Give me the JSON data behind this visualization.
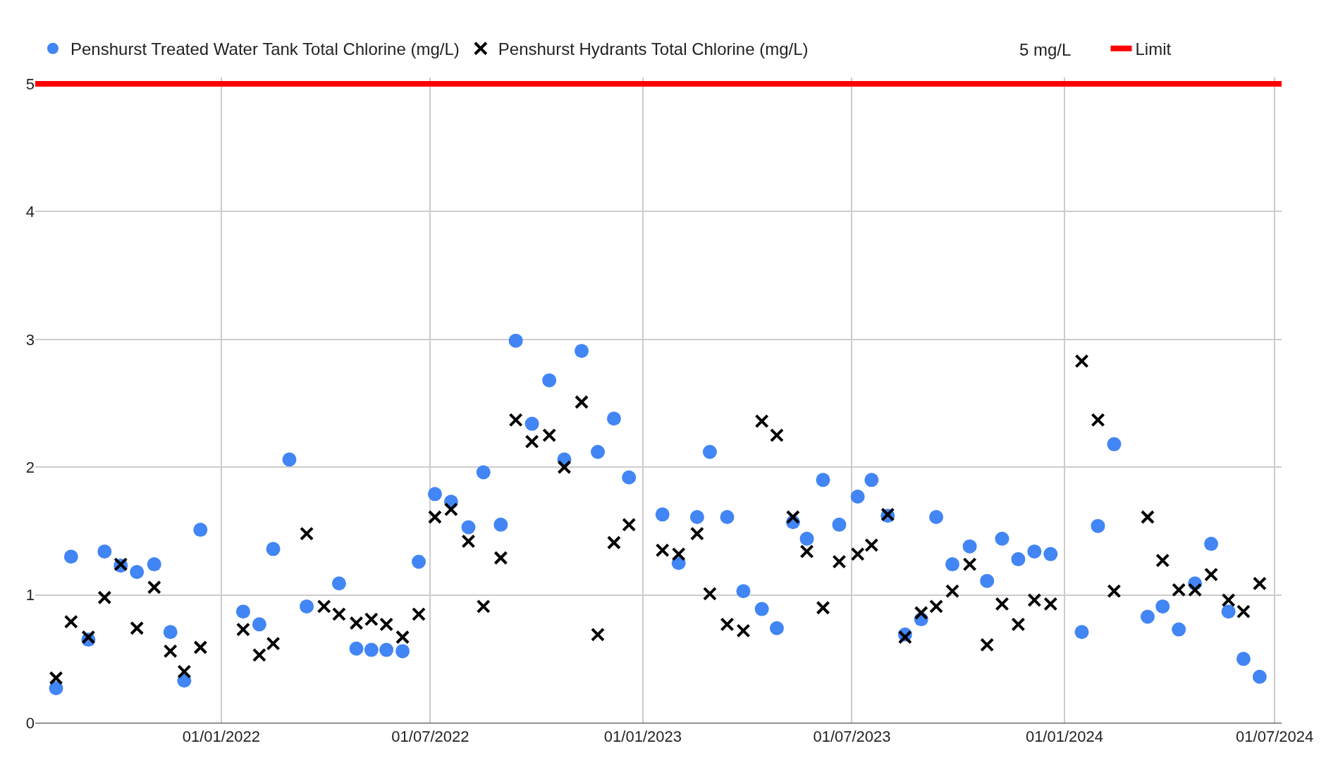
{
  "chart_data": {
    "type": "scatter",
    "xlim": [
      "2021-07-24",
      "2024-07-07"
    ],
    "xticks": [
      {
        "value": "2022-01-01",
        "label": "01/01/2022"
      },
      {
        "value": "2022-07-01",
        "label": "01/07/2022"
      },
      {
        "value": "2023-01-01",
        "label": "01/01/2023"
      },
      {
        "value": "2023-07-01",
        "label": "01/07/2023"
      },
      {
        "value": "2024-01-01",
        "label": "01/01/2024"
      },
      {
        "value": "2024-07-01",
        "label": "01/07/2024"
      }
    ],
    "ylim": [
      0,
      5.05
    ],
    "yticks": [
      0,
      1,
      2,
      3,
      4,
      5
    ],
    "grid": true,
    "legend": "top",
    "annotations": [
      "5 mg/L"
    ],
    "series": [
      {
        "name": "Penshurst Treated Water Tank Total Chlorine (mg/L)",
        "color": "#4285f4",
        "marker": "circle",
        "x": [
          "2021-08-11",
          "2021-08-24",
          "2021-09-08",
          "2021-09-22",
          "2021-10-06",
          "2021-10-20",
          "2021-11-04",
          "2021-11-18",
          "2021-11-30",
          "2021-12-14",
          "2022-01-20",
          "2022-02-03",
          "2022-02-15",
          "2022-03-01",
          "2022-03-16",
          "2022-04-13",
          "2022-04-28",
          "2022-05-11",
          "2022-05-24",
          "2022-06-07",
          "2022-06-21",
          "2022-07-05",
          "2022-07-19",
          "2022-08-03",
          "2022-08-16",
          "2022-08-31",
          "2022-09-13",
          "2022-09-27",
          "2022-10-12",
          "2022-10-25",
          "2022-11-09",
          "2022-11-23",
          "2022-12-07",
          "2022-12-20",
          "2023-01-18",
          "2023-02-01",
          "2023-02-17",
          "2023-02-28",
          "2023-03-15",
          "2023-03-29",
          "2023-04-14",
          "2023-04-27",
          "2023-05-11",
          "2023-05-23",
          "2023-06-06",
          "2023-06-20",
          "2023-07-06",
          "2023-07-18",
          "2023-08-01",
          "2023-08-16",
          "2023-08-30",
          "2023-09-12",
          "2023-09-26",
          "2023-10-11",
          "2023-10-26",
          "2023-11-08",
          "2023-11-22",
          "2023-12-06",
          "2023-12-20",
          "2024-01-16",
          "2024-01-30",
          "2024-02-13",
          "2024-03-13",
          "2024-03-26",
          "2024-04-09",
          "2024-04-23",
          "2024-05-07",
          "2024-05-22",
          "2024-06-04",
          "2024-06-18"
        ],
        "values": [
          0.27,
          1.3,
          0.65,
          1.34,
          1.23,
          1.18,
          1.24,
          0.71,
          0.33,
          1.51,
          0.87,
          0.77,
          1.36,
          2.06,
          0.91,
          1.09,
          0.58,
          0.57,
          0.57,
          0.56,
          1.26,
          1.79,
          1.73,
          1.53,
          1.96,
          1.55,
          2.99,
          2.34,
          2.68,
          2.06,
          2.91,
          2.12,
          2.38,
          1.92,
          1.63,
          1.25,
          1.61,
          2.12,
          1.61,
          1.03,
          0.89,
          0.74,
          1.57,
          1.44,
          1.9,
          1.55,
          1.77,
          1.9,
          1.62,
          0.69,
          0.81,
          1.61,
          1.24,
          1.38,
          1.11,
          1.44,
          1.28,
          1.34,
          1.32,
          0.71,
          1.54,
          2.18,
          0.83,
          0.91,
          0.73,
          1.09,
          1.4,
          0.87,
          0.5,
          0.36
        ]
      },
      {
        "name": "Penshurst Hydrants Total Chlorine (mg/L)",
        "color": "#000000",
        "marker": "cross",
        "x": [
          "2021-08-11",
          "2021-08-24",
          "2021-09-08",
          "2021-09-22",
          "2021-10-06",
          "2021-10-20",
          "2021-11-04",
          "2021-11-18",
          "2021-11-30",
          "2021-12-14",
          "2022-01-20",
          "2022-02-03",
          "2022-02-15",
          "2022-03-16",
          "2022-03-31",
          "2022-04-13",
          "2022-04-28",
          "2022-05-11",
          "2022-05-24",
          "2022-06-07",
          "2022-06-21",
          "2022-07-05",
          "2022-07-19",
          "2022-08-03",
          "2022-08-16",
          "2022-08-31",
          "2022-09-13",
          "2022-09-27",
          "2022-10-12",
          "2022-10-25",
          "2022-11-09",
          "2022-11-23",
          "2022-12-07",
          "2022-12-20",
          "2023-01-18",
          "2023-02-01",
          "2023-02-17",
          "2023-02-28",
          "2023-03-15",
          "2023-03-29",
          "2023-04-14",
          "2023-04-27",
          "2023-05-11",
          "2023-05-23",
          "2023-06-06",
          "2023-06-20",
          "2023-07-06",
          "2023-07-18",
          "2023-08-01",
          "2023-08-16",
          "2023-08-30",
          "2023-09-12",
          "2023-09-26",
          "2023-10-11",
          "2023-10-26",
          "2023-11-08",
          "2023-11-22",
          "2023-12-06",
          "2023-12-20",
          "2024-01-16",
          "2024-01-30",
          "2024-02-13",
          "2024-03-13",
          "2024-03-26",
          "2024-04-09",
          "2024-04-23",
          "2024-05-07",
          "2024-05-22",
          "2024-06-04",
          "2024-06-18"
        ],
        "values": [
          0.35,
          0.79,
          0.67,
          0.98,
          1.24,
          0.74,
          1.06,
          0.56,
          0.4,
          0.59,
          0.73,
          0.53,
          0.62,
          1.48,
          0.91,
          0.85,
          0.78,
          0.81,
          0.77,
          0.67,
          0.85,
          1.61,
          1.67,
          1.42,
          0.91,
          1.29,
          2.37,
          2.2,
          2.25,
          2.0,
          2.51,
          0.69,
          1.41,
          1.55,
          1.35,
          1.32,
          1.48,
          1.01,
          0.77,
          0.72,
          2.36,
          2.25,
          1.61,
          1.34,
          0.9,
          1.26,
          1.32,
          1.39,
          1.63,
          0.67,
          0.86,
          0.91,
          1.03,
          1.24,
          0.61,
          0.93,
          0.77,
          0.96,
          0.93,
          2.83,
          2.37,
          1.03,
          1.61,
          1.27,
          1.04,
          1.04,
          1.16,
          0.96,
          0.87,
          1.09
        ]
      },
      {
        "name": "Limit",
        "type": "line",
        "color": "#ff0000",
        "marker": "none",
        "x": [
          "2021-07-24",
          "2024-07-07"
        ],
        "values": [
          5,
          5
        ]
      }
    ]
  }
}
